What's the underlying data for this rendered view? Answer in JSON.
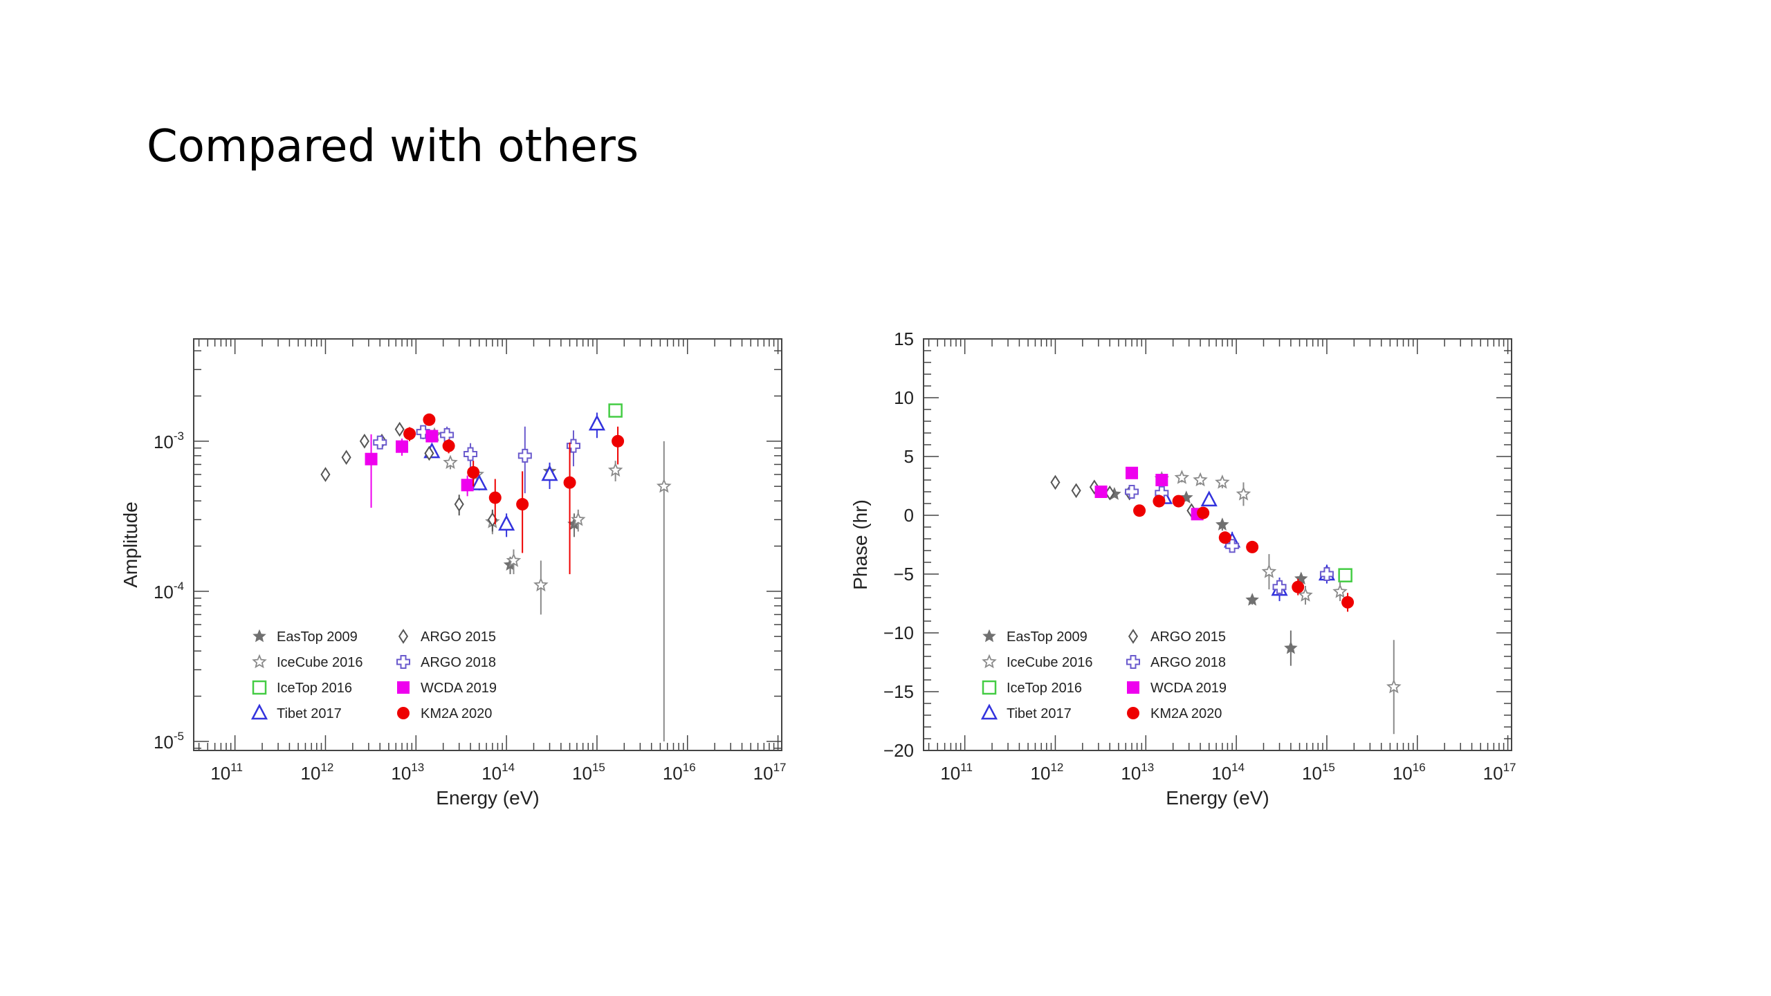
{
  "slide": {
    "title": "Compared with others"
  },
  "colors": {
    "EasTop": "#707070",
    "IceCube": "#8a8a8a",
    "IceTop": "#44cc44",
    "Tibet": "#3333dd",
    "ARGO2015": "#555555",
    "ARGO2018": "#6a5acd",
    "WCDA": "#ee00ee",
    "KM2A": "#ee0000"
  },
  "legend": [
    {
      "key": "EasTop",
      "label": "EasTop 2009",
      "marker": "star"
    },
    {
      "key": "IceCube",
      "label": "IceCube 2016",
      "marker": "openstar"
    },
    {
      "key": "IceTop",
      "label": "IceTop 2016",
      "marker": "opensquare"
    },
    {
      "key": "Tibet",
      "label": "Tibet 2017",
      "marker": "opentriangle"
    },
    {
      "key": "ARGO2015",
      "label": "ARGO 2015",
      "marker": "opendiamond"
    },
    {
      "key": "ARGO2018",
      "label": "ARGO 2018",
      "marker": "opencross"
    },
    {
      "key": "WCDA",
      "label": "WCDA 2019",
      "marker": "square"
    },
    {
      "key": "KM2A",
      "label": "KM2A 2020",
      "marker": "circle"
    }
  ],
  "chart_data": [
    {
      "type": "scatter",
      "xlabel": "Energy (eV)",
      "ylabel": "Amplitude",
      "xscale": "log",
      "yscale": "log",
      "xlim": [
        35000000000.0,
        1.1e+17
      ],
      "ylim": [
        8.7e-06,
        0.0048
      ],
      "xticks": [
        {
          "v": 100000000000.0,
          "m": "10",
          "e": "11"
        },
        {
          "v": 1000000000000.0,
          "m": "10",
          "e": "12"
        },
        {
          "v": 10000000000000.0,
          "m": "10",
          "e": "13"
        },
        {
          "v": 100000000000000.0,
          "m": "10",
          "e": "14"
        },
        {
          "v": 1000000000000000.0,
          "m": "10",
          "e": "15"
        },
        {
          "v": 1e+16,
          "m": "10",
          "e": "16"
        },
        {
          "v": 1e+17,
          "m": "10",
          "e": "17"
        }
      ],
      "yticks": [
        {
          "v": 1e-05,
          "m": "10",
          "e": "-5"
        },
        {
          "v": 0.0001,
          "m": "10",
          "e": "-4"
        },
        {
          "v": 0.001,
          "m": "10",
          "e": "-3"
        }
      ],
      "legend_position": "bottom-left",
      "series": [
        {
          "key": "EasTop",
          "points": [
            [
              110000000000000.0,
              0.00015,
              2e-05,
              2e-05
            ],
            [
              300000000000000.0,
              0.00063,
              8e-05,
              8e-05
            ],
            [
              560000000000000.0,
              0.00028,
              5e-05,
              5e-05
            ]
          ]
        },
        {
          "key": "IceCube",
          "points": [
            [
              16000000000000.0,
              0.0011,
              0.0001,
              0.0001
            ],
            [
              24000000000000.0,
              0.00072,
              7e-05,
              7e-05
            ],
            [
              47000000000000.0,
              0.0006,
              7e-05,
              7e-05
            ],
            [
              70000000000000.0,
              0.00029,
              5e-05,
              5e-05
            ],
            [
              120000000000000.0,
              0.00016,
              3e-05,
              3e-05
            ],
            [
              240000000000000.0,
              0.00011,
              5e-05,
              4e-05
            ],
            [
              620000000000000.0,
              0.0003,
              5e-05,
              5e-05
            ],
            [
              1600000000000000.0,
              0.00064,
              0.0001,
              0.0001
            ],
            [
              5500000000000000.0,
              0.0005,
              0.0005,
              0.00049
            ]
          ]
        },
        {
          "key": "IceTop",
          "points": [
            [
              1600000000000000.0,
              0.0016,
              7e-05,
              7e-05
            ]
          ]
        },
        {
          "key": "Tibet",
          "points": [
            [
              15000000000000.0,
              0.00085,
              7e-05,
              7e-05
            ],
            [
              50000000000000.0,
              0.00052,
              5e-05,
              5e-05
            ],
            [
              100000000000000.0,
              0.00028,
              5e-05,
              5e-05
            ],
            [
              300000000000000.0,
              0.0006,
              0.00012,
              0.00012
            ],
            [
              1000000000000000.0,
              0.0013,
              0.00025,
              0.00025
            ]
          ]
        },
        {
          "key": "ARGO2015",
          "points": [
            [
              1000000000000.0,
              0.0006,
              4e-05,
              4e-05
            ],
            [
              1700000000000.0,
              0.00078,
              5e-05,
              5e-05
            ],
            [
              2700000000000.0,
              0.001,
              6e-05,
              6e-05
            ],
            [
              4200000000000.0,
              0.001,
              8e-05,
              8e-05
            ],
            [
              6600000000000.0,
              0.0012,
              0.0001,
              0.0001
            ],
            [
              14000000000000.0,
              0.00083,
              8e-05,
              8e-05
            ],
            [
              30000000000000.0,
              0.00038,
              6e-05,
              6e-05
            ],
            [
              70000000000000.0,
              0.0003,
              5e-05,
              5e-05
            ]
          ]
        },
        {
          "key": "ARGO2018",
          "points": [
            [
              4000000000000.0,
              0.00098,
              9e-05,
              9e-05
            ],
            [
              12000000000000.0,
              0.00115,
              0.00012,
              0.00012
            ],
            [
              22000000000000.0,
              0.0011,
              0.00015,
              0.00015
            ],
            [
              40000000000000.0,
              0.00082,
              0.00015,
              0.00015
            ],
            [
              160000000000000.0,
              0.0008,
              0.00045,
              0.00035
            ],
            [
              550000000000000.0,
              0.00093,
              0.00025,
              0.00025
            ]
          ]
        },
        {
          "key": "WCDA",
          "points": [
            [
              3200000000000.0,
              0.00076,
              0.00035,
              0.0004
            ],
            [
              7000000000000.0,
              0.00092,
              0.00012,
              0.00012
            ],
            [
              15000000000000.0,
              0.00108,
              0.0001,
              0.0001
            ],
            [
              37000000000000.0,
              0.00051,
              8e-05,
              8e-05
            ]
          ]
        },
        {
          "key": "KM2A",
          "points": [
            [
              8500000000000.0,
              0.00112,
              0.00012,
              0.00012
            ],
            [
              14000000000000.0,
              0.00139,
              0.00012,
              0.00012
            ],
            [
              23000000000000.0,
              0.00093,
              0.0001,
              0.0001
            ],
            [
              43000000000000.0,
              0.00062,
              0.00012,
              0.00012
            ],
            [
              75000000000000.0,
              0.00042,
              0.00014,
              0.00014
            ],
            [
              150000000000000.0,
              0.00038,
              0.00025,
              0.0002
            ],
            [
              500000000000000.0,
              0.00053,
              0.00045,
              0.0004
            ],
            [
              1700000000000000.0,
              0.001,
              0.00025,
              0.0003
            ]
          ]
        }
      ]
    },
    {
      "type": "scatter",
      "xlabel": "Energy (eV)",
      "ylabel": "Phase (hr)",
      "xscale": "log",
      "yscale": "linear",
      "xlim": [
        35000000000.0,
        1.1e+17
      ],
      "ylim": [
        -20,
        15
      ],
      "xticks": [
        {
          "v": 100000000000.0,
          "m": "10",
          "e": "11"
        },
        {
          "v": 1000000000000.0,
          "m": "10",
          "e": "12"
        },
        {
          "v": 10000000000000.0,
          "m": "10",
          "e": "13"
        },
        {
          "v": 100000000000000.0,
          "m": "10",
          "e": "14"
        },
        {
          "v": 1000000000000000.0,
          "m": "10",
          "e": "15"
        },
        {
          "v": 1e+16,
          "m": "10",
          "e": "16"
        },
        {
          "v": 1e+17,
          "m": "10",
          "e": "17"
        }
      ],
      "yticks": [
        {
          "v": 15,
          "m": "15",
          "e": ""
        },
        {
          "v": 10,
          "m": "10",
          "e": ""
        },
        {
          "v": 5,
          "m": "5",
          "e": ""
        },
        {
          "v": 0,
          "m": "0",
          "e": ""
        },
        {
          "v": -5,
          "m": "−5",
          "e": ""
        },
        {
          "v": -10,
          "m": "−10",
          "e": ""
        },
        {
          "v": -15,
          "m": "−15",
          "e": ""
        },
        {
          "v": -20,
          "m": "−20",
          "e": ""
        }
      ],
      "legend_position": "bottom-left",
      "series": [
        {
          "key": "EasTop",
          "points": [
            [
              4500000000000.0,
              1.8,
              0.3,
              0.3
            ],
            [
              15000000000000.0,
              1.7,
              0.3,
              0.3
            ],
            [
              28000000000000.0,
              1.5,
              0.3,
              0.3
            ],
            [
              70000000000000.0,
              -0.8,
              0.5,
              0.5
            ],
            [
              150000000000000.0,
              -7.2,
              0.4,
              0.4
            ],
            [
              400000000000000.0,
              -11.3,
              1.5,
              1.5
            ],
            [
              520000000000000.0,
              -5.4,
              0.5,
              0.5
            ]
          ]
        },
        {
          "key": "IceCube",
          "points": [
            [
              15000000000000.0,
              3.1,
              0.4,
              0.4
            ],
            [
              25000000000000.0,
              3.2,
              0.4,
              0.4
            ],
            [
              40000000000000.0,
              3.0,
              0.4,
              0.4
            ],
            [
              70000000000000.0,
              2.8,
              0.5,
              0.5
            ],
            [
              120000000000000.0,
              1.8,
              1.0,
              1.0
            ],
            [
              230000000000000.0,
              -4.8,
              1.5,
              1.5
            ],
            [
              580000000000000.0,
              -6.8,
              0.8,
              0.8
            ],
            [
              1400000000000000.0,
              -6.5,
              0.8,
              0.8
            ],
            [
              5500000000000000.0,
              -14.6,
              4.0,
              4.0
            ]
          ]
        },
        {
          "key": "IceTop",
          "points": [
            [
              1600000000000000.0,
              -5.1,
              0.3,
              0.3
            ]
          ]
        },
        {
          "key": "Tibet",
          "points": [
            [
              16000000000000.0,
              1.5,
              0.3,
              0.3
            ],
            [
              50000000000000.0,
              1.3,
              0.5,
              0.5
            ],
            [
              90000000000000.0,
              -2.2,
              0.8,
              0.8
            ],
            [
              300000000000000.0,
              -6.3,
              1.0,
              1.0
            ],
            [
              1000000000000000.0,
              -5.0,
              0.8,
              0.8
            ]
          ]
        },
        {
          "key": "ARGO2015",
          "points": [
            [
              1000000000000.0,
              2.8,
              0.2,
              0.2
            ],
            [
              1700000000000.0,
              2.1,
              0.2,
              0.2
            ],
            [
              2700000000000.0,
              2.4,
              0.2,
              0.2
            ],
            [
              4000000000000.0,
              1.9,
              0.2,
              0.2
            ],
            [
              6600000000000.0,
              1.9,
              0.3,
              0.3
            ],
            [
              14000000000000.0,
              1.5,
              0.3,
              0.3
            ],
            [
              32000000000000.0,
              0.4,
              0.4,
              0.4
            ]
          ]
        },
        {
          "key": "ARGO2018",
          "points": [
            [
              7000000000000.0,
              2.0,
              0.3,
              0.3
            ],
            [
              15000000000000.0,
              1.9,
              0.4,
              0.4
            ],
            [
              90000000000000.0,
              -2.6,
              0.5,
              0.5
            ],
            [
              300000000000000.0,
              -6.1,
              0.7,
              0.7
            ],
            [
              1000000000000000.0,
              -5.0,
              0.6,
              0.6
            ]
          ]
        },
        {
          "key": "WCDA",
          "points": [
            [
              3200000000000.0,
              2.0,
              0.4,
              0.4
            ],
            [
              7000000000000.0,
              3.6,
              0.3,
              0.3
            ],
            [
              15000000000000.0,
              3.0,
              0.3,
              0.3
            ],
            [
              37000000000000.0,
              0.1,
              0.3,
              0.3
            ]
          ]
        },
        {
          "key": "KM2A",
          "points": [
            [
              8500000000000.0,
              0.4,
              0.3,
              0.3
            ],
            [
              14000000000000.0,
              1.2,
              0.3,
              0.3
            ],
            [
              23000000000000.0,
              1.2,
              0.3,
              0.3
            ],
            [
              43000000000000.0,
              0.2,
              0.3,
              0.3
            ],
            [
              75000000000000.0,
              -1.9,
              0.5,
              0.5
            ],
            [
              150000000000000.0,
              -2.7,
              0.5,
              0.5
            ],
            [
              480000000000000.0,
              -6.1,
              0.7,
              0.7
            ],
            [
              1700000000000000.0,
              -7.4,
              0.8,
              0.8
            ]
          ]
        }
      ]
    }
  ]
}
